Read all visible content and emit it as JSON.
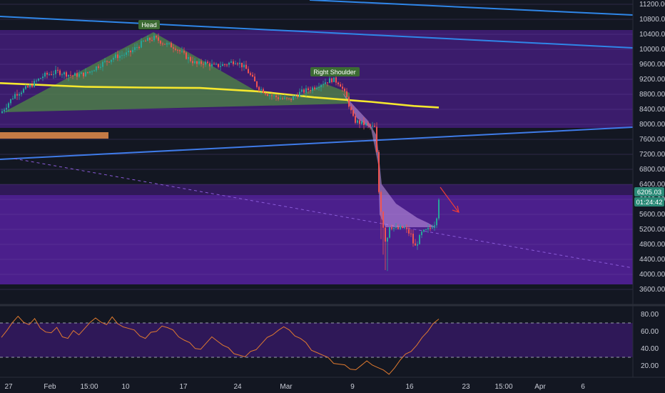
{
  "colors": {
    "background": "#131722",
    "zone_purple": "#4a1f86",
    "zone_purple_light": "#5d2a9e",
    "hs_fill": "#4f8a43",
    "trend_line": "#2f86e8",
    "ma_yellow": "#f5e72e",
    "rsi_line": "#e07a2f",
    "price_badge": "#2a8a77",
    "down_arrow": "#ef3e36",
    "bar_brown": "#c47a45"
  },
  "chart_data": [
    {
      "type": "candlestick",
      "title": "",
      "annotations": [
        "Head",
        "Right Shoulder"
      ],
      "x_ticks": [
        "27",
        "Feb",
        "15:00",
        "10",
        "17",
        "24",
        "Mar",
        "9",
        "16",
        "23",
        "15:00",
        "Apr",
        "6"
      ],
      "y_ticks": [
        "11200.00",
        "10800.00",
        "10400.00",
        "10000.00",
        "9600.00",
        "9200.00",
        "8800.00",
        "8400.00",
        "8000.00",
        "7600.00",
        "7200.00",
        "6800.00",
        "6400.00",
        "6000.00",
        "5600.00",
        "5200.00",
        "4800.00",
        "4400.00",
        "4000.00",
        "3600.00"
      ],
      "ylim": [
        3400,
        11300
      ],
      "last_price": "6205.03",
      "countdown": "01:24:42",
      "price_path": [
        [
          0,
          8300
        ],
        [
          20,
          8800
        ],
        [
          40,
          9000
        ],
        [
          60,
          9300
        ],
        [
          80,
          9400
        ],
        [
          100,
          9300
        ],
        [
          120,
          9350
        ],
        [
          140,
          9600
        ],
        [
          160,
          9800
        ],
        [
          180,
          9900
        ],
        [
          200,
          10200
        ],
        [
          215,
          10300
        ],
        [
          230,
          10150
        ],
        [
          245,
          10050
        ],
        [
          260,
          9800
        ],
        [
          275,
          9600
        ],
        [
          285,
          9650
        ],
        [
          300,
          9550
        ],
        [
          315,
          9600
        ],
        [
          330,
          9700
        ],
        [
          345,
          9450
        ],
        [
          360,
          9000
        ],
        [
          375,
          8800
        ],
        [
          390,
          8700
        ],
        [
          405,
          8650
        ],
        [
          420,
          8850
        ],
        [
          435,
          8950
        ],
        [
          450,
          9100
        ],
        [
          465,
          9200
        ],
        [
          475,
          9100
        ],
        [
          485,
          8700
        ],
        [
          495,
          8100
        ],
        [
          510,
          8000
        ],
        [
          525,
          7900
        ],
        [
          530,
          6200
        ],
        [
          535,
          5400
        ],
        [
          540,
          4800
        ],
        [
          545,
          5300
        ],
        [
          555,
          5200
        ],
        [
          565,
          5250
        ],
        [
          575,
          5050
        ],
        [
          580,
          4700
        ],
        [
          590,
          5100
        ],
        [
          600,
          5200
        ],
        [
          610,
          5400
        ],
        [
          615,
          6205
        ]
      ],
      "ma_path": [
        [
          0,
          9100
        ],
        [
          60,
          9050
        ],
        [
          120,
          9000
        ],
        [
          200,
          8980
        ],
        [
          280,
          8970
        ],
        [
          360,
          8880
        ],
        [
          440,
          8720
        ],
        [
          520,
          8600
        ],
        [
          580,
          8490
        ],
        [
          615,
          8450
        ]
      ],
      "zones": [
        {
          "from": 8600,
          "to": 10550
        },
        {
          "from": 3700,
          "to": 6000
        },
        {
          "from": 6000,
          "to": 6450
        }
      ]
    },
    {
      "type": "line",
      "title": "",
      "y_ticks": [
        "80.00",
        "60.00",
        "40.00",
        "20.00"
      ],
      "ylim": [
        5,
        85
      ],
      "levels": [
        70,
        30
      ],
      "values": [
        55,
        62,
        70,
        76,
        72,
        68,
        74,
        66,
        60,
        58,
        63,
        55,
        52,
        60,
        58,
        64,
        70,
        74,
        72,
        68,
        76,
        71,
        66,
        63,
        60,
        56,
        52,
        58,
        62,
        67,
        64,
        60,
        55,
        50,
        46,
        42,
        40,
        46,
        52,
        50,
        44,
        40,
        36,
        33,
        30,
        35,
        40,
        46,
        52,
        58,
        62,
        65,
        60,
        56,
        52,
        46,
        40,
        36,
        32,
        28,
        24,
        22,
        20,
        18,
        16,
        20,
        24,
        22,
        18,
        14,
        12,
        18,
        26,
        32,
        38,
        44,
        52,
        62,
        70,
        74
      ]
    }
  ]
}
